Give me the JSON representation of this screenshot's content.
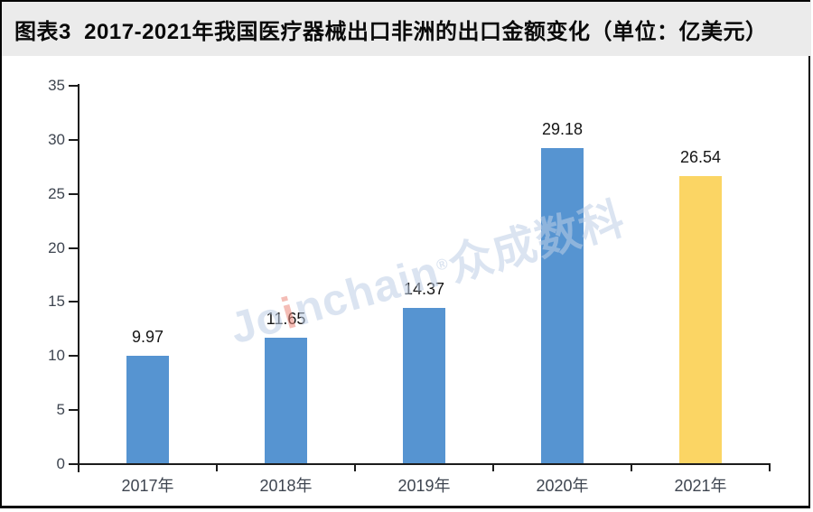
{
  "header": {
    "title": "图表3  2017-2021年我国医疗器械出口非洲的出口金额变化（单位：亿美元）"
  },
  "watermark": {
    "part1": "Jo",
    "accent_i": "i",
    "part2": "nchain",
    "reg": "®",
    "cn": "众成数科"
  },
  "colors": {
    "title_bar_bg": "#ebebeb",
    "bar_blue": "#5694d1",
    "bar_highlight_yellow": "#fbd564",
    "axis": "#1c1c1c",
    "tick_label": "#3e4550",
    "value_label": "#161616",
    "frame_border": "#050505"
  },
  "chart_data": {
    "type": "bar",
    "title": "图表3 2017-2021年我国医疗器械出口非洲的出口金额变化（单位：亿美元）",
    "categories": [
      "2017年",
      "2018年",
      "2019年",
      "2020年",
      "2021年"
    ],
    "values": [
      9.97,
      11.65,
      14.37,
      29.18,
      26.54
    ],
    "value_labels": [
      "9.97",
      "11.65",
      "14.37",
      "29.18",
      "26.54"
    ],
    "bar_colors": [
      "#5694d1",
      "#5694d1",
      "#5694d1",
      "#5694d1",
      "#fbd564"
    ],
    "xlabel": "",
    "ylabel": "",
    "ylim": [
      0,
      35
    ],
    "yticks": [
      0,
      5,
      10,
      15,
      20,
      25,
      30,
      35
    ],
    "grid": false,
    "legend": null,
    "unit": "亿美元"
  }
}
